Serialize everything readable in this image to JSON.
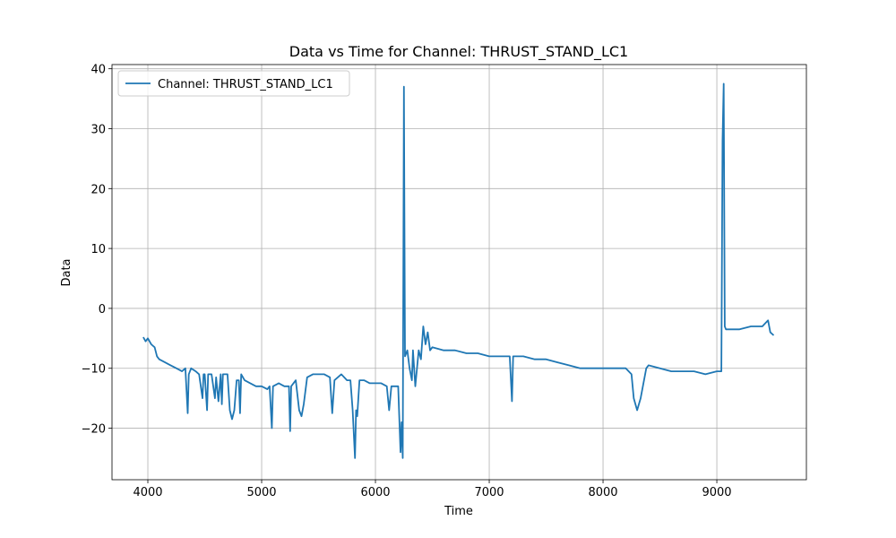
{
  "chart_data": {
    "type": "line",
    "title": "Data vs Time for Channel: THRUST_STAND_LC1",
    "x_label": "Time",
    "y_label": "Data",
    "xlim": [
      3685,
      9787
    ],
    "ylim": [
      -28.6,
      40.7
    ],
    "xticks": [
      4000,
      5000,
      6000,
      7000,
      8000,
      9000
    ],
    "yticks": [
      {
        "value": -20,
        "label": "−20"
      },
      {
        "value": -10,
        "label": "−10"
      },
      0,
      10,
      20,
      30,
      40
    ],
    "grid": true,
    "legend": "upper-left",
    "series": [
      {
        "name": "Channel: THRUST_STAND_LC1",
        "color": "#1f77b4",
        "x": [
          3960,
          3980,
          4000,
          4030,
          4060,
          4080,
          4100,
          4150,
          4200,
          4250,
          4300,
          4330,
          4350,
          4360,
          4380,
          4420,
          4450,
          4480,
          4490,
          4500,
          4520,
          4530,
          4560,
          4590,
          4600,
          4620,
          4640,
          4650,
          4660,
          4700,
          4720,
          4740,
          4760,
          4780,
          4800,
          4810,
          4820,
          4850,
          4900,
          4950,
          5000,
          5050,
          5070,
          5090,
          5100,
          5150,
          5200,
          5240,
          5250,
          5260,
          5300,
          5330,
          5350,
          5370,
          5400,
          5450,
          5500,
          5550,
          5600,
          5620,
          5640,
          5700,
          5750,
          5780,
          5800,
          5820,
          5830,
          5840,
          5860,
          5900,
          5950,
          6000,
          6050,
          6100,
          6120,
          6140,
          6200,
          6220,
          6230,
          6240,
          6250,
          6260,
          6280,
          6300,
          6320,
          6330,
          6350,
          6380,
          6400,
          6420,
          6440,
          6460,
          6480,
          6500,
          6600,
          6700,
          6800,
          6900,
          7000,
          7100,
          7180,
          7200,
          7210,
          7300,
          7400,
          7500,
          7600,
          7700,
          7800,
          7900,
          8000,
          8100,
          8200,
          8250,
          8270,
          8300,
          8330,
          8350,
          8380,
          8400,
          8500,
          8600,
          8700,
          8800,
          8900,
          9000,
          9040,
          9050,
          9060,
          9070,
          9080,
          9200,
          9300,
          9400,
          9450,
          9470,
          9500
        ],
        "values": [
          -4.8,
          -5.5,
          -5,
          -6,
          -6.5,
          -8,
          -8.5,
          -9,
          -9.5,
          -10,
          -10.5,
          -10,
          -17.5,
          -11,
          -10,
          -10.5,
          -11,
          -15,
          -11,
          -11,
          -17,
          -11,
          -11,
          -15,
          -11.5,
          -15.5,
          -11,
          -16,
          -11,
          -11,
          -17,
          -18.5,
          -17,
          -12,
          -12,
          -17.5,
          -11,
          -12,
          -12.5,
          -13,
          -13,
          -13.5,
          -13,
          -20,
          -13,
          -12.5,
          -13,
          -13,
          -20.5,
          -13,
          -12,
          -17,
          -18,
          -16,
          -11.5,
          -11,
          -11,
          -11,
          -11.5,
          -17.5,
          -12,
          -11,
          -12,
          -12,
          -17,
          -25,
          -17,
          -18,
          -12,
          -12,
          -12.5,
          -12.5,
          -12.5,
          -13,
          -17,
          -13,
          -13,
          -24,
          -19,
          -25,
          37,
          -8,
          -7,
          -10,
          -12,
          -7,
          -13,
          -7,
          -8.5,
          -3,
          -6,
          -4,
          -7,
          -6.5,
          -7,
          -7,
          -7.5,
          -7.5,
          -8,
          -8,
          -8,
          -15.5,
          -8,
          -8,
          -8.5,
          -8.5,
          -9,
          -9.5,
          -10,
          -10,
          -10,
          -10,
          -10,
          -11,
          -15,
          -17,
          -15,
          -13,
          -10,
          -9.5,
          -10,
          -10.5,
          -10.5,
          -10.5,
          -11,
          -10.5,
          -10.5,
          28,
          37.5,
          -3,
          -3.5,
          -3.5,
          -3,
          -3,
          -2,
          -4,
          -4.5
        ]
      }
    ]
  }
}
